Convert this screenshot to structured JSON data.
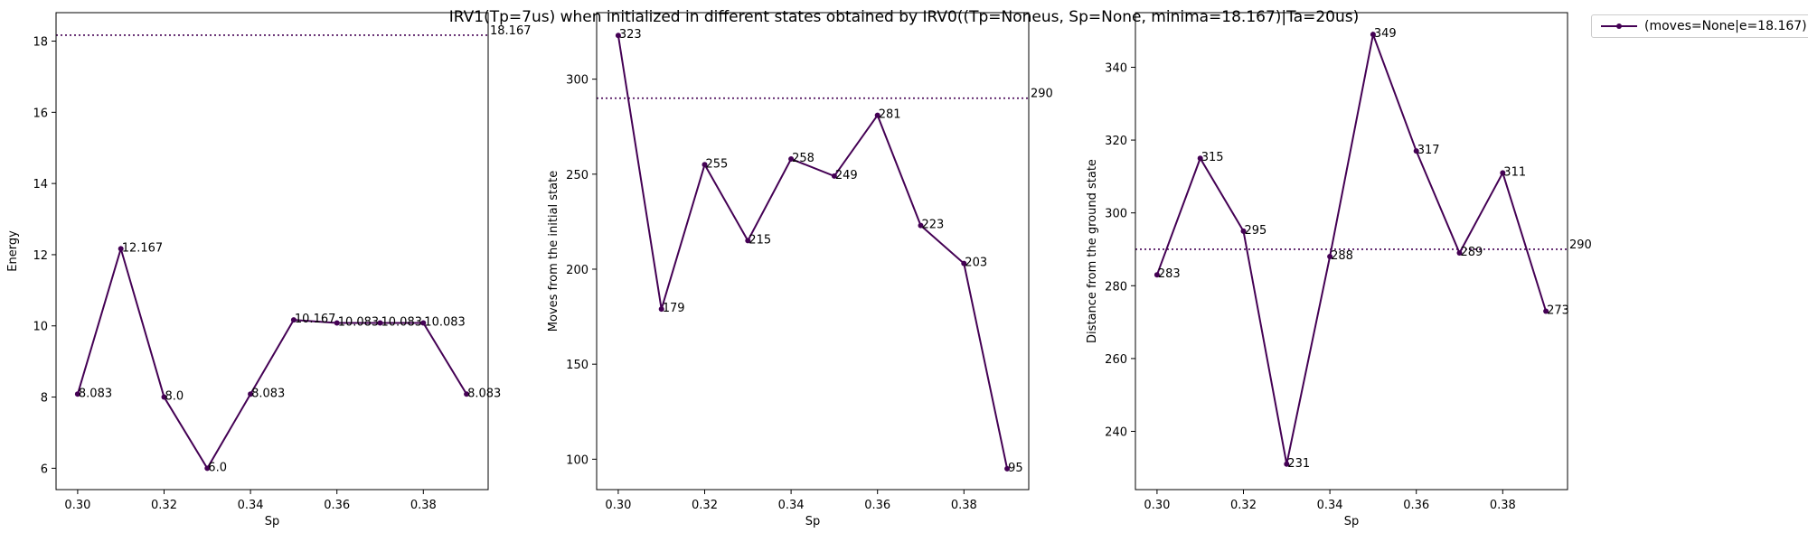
{
  "figure_title": "IRV1(Tp=7us) when initialized in different states obtained by IRV0((Tp=Noneus, Sp=None, minima=18.167)|Ta=20us)",
  "legend": {
    "label": "(moves=None|e=18.167)",
    "placement": "upper-right-outside"
  },
  "colors": {
    "series": "#440154",
    "refline": "#440154",
    "axis": "#000000"
  },
  "chart_data": [
    {
      "type": "line",
      "xlabel": "Sp",
      "ylabel": "Energy",
      "xlim": [
        0.295,
        0.395
      ],
      "ylim": [
        5.4,
        18.8
      ],
      "xticks": [
        0.3,
        0.32,
        0.34,
        0.36,
        0.38
      ],
      "xtick_labels": [
        "0.30",
        "0.32",
        "0.34",
        "0.36",
        "0.38"
      ],
      "yticks": [
        6,
        8,
        10,
        12,
        14,
        16,
        18
      ],
      "ytick_labels": [
        "6",
        "8",
        "10",
        "12",
        "14",
        "16",
        "18"
      ],
      "reference_line": {
        "y": 18.167,
        "label": "18.167"
      },
      "x": [
        0.3,
        0.31,
        0.32,
        0.33,
        0.34,
        0.35,
        0.36,
        0.37,
        0.38,
        0.39
      ],
      "values": [
        8.083,
        12.167,
        8.0,
        6.0,
        8.083,
        10.167,
        10.083,
        10.083,
        10.083,
        8.083
      ],
      "data_labels": [
        "8.083",
        "12.167",
        "8.0",
        "6.0",
        "8.083",
        "10.167",
        "10.083",
        "10.083",
        "10.083",
        "8.083"
      ],
      "grid": false
    },
    {
      "type": "line",
      "xlabel": "Sp",
      "ylabel": "Moves from the initial state",
      "xlim": [
        0.295,
        0.395
      ],
      "ylim": [
        84,
        335
      ],
      "xticks": [
        0.3,
        0.32,
        0.34,
        0.36,
        0.38
      ],
      "xtick_labels": [
        "0.30",
        "0.32",
        "0.34",
        "0.36",
        "0.38"
      ],
      "yticks": [
        100,
        150,
        200,
        250,
        300
      ],
      "ytick_labels": [
        "100",
        "150",
        "200",
        "250",
        "300"
      ],
      "reference_line": {
        "y": 290,
        "label": "290"
      },
      "x": [
        0.3,
        0.31,
        0.32,
        0.33,
        0.34,
        0.35,
        0.36,
        0.37,
        0.38,
        0.39
      ],
      "values": [
        323,
        179,
        255,
        215,
        258,
        249,
        281,
        223,
        203,
        95
      ],
      "data_labels": [
        "323",
        "179",
        "255",
        "215",
        "258",
        "249",
        "281",
        "223",
        "203",
        "95"
      ],
      "grid": false
    },
    {
      "type": "line",
      "xlabel": "Sp",
      "ylabel": "Distance from the ground state",
      "xlim": [
        0.295,
        0.395
      ],
      "ylim": [
        224.0,
        355.0
      ],
      "xticks": [
        0.3,
        0.32,
        0.34,
        0.36,
        0.38
      ],
      "xtick_labels": [
        "0.30",
        "0.32",
        "0.34",
        "0.36",
        "0.38"
      ],
      "yticks": [
        240,
        260,
        280,
        300,
        320,
        340
      ],
      "ytick_labels": [
        "240",
        "260",
        "280",
        "300",
        "320",
        "340"
      ],
      "reference_line": {
        "y": 290,
        "label": "290"
      },
      "x": [
        0.3,
        0.31,
        0.32,
        0.33,
        0.34,
        0.35,
        0.36,
        0.37,
        0.38,
        0.39
      ],
      "values": [
        283,
        315,
        295,
        231,
        288,
        349,
        317,
        289,
        311,
        273
      ],
      "data_labels": [
        "283",
        "315",
        "295",
        "231",
        "288",
        "349",
        "317",
        "289",
        "311",
        "273"
      ],
      "grid": false
    }
  ]
}
